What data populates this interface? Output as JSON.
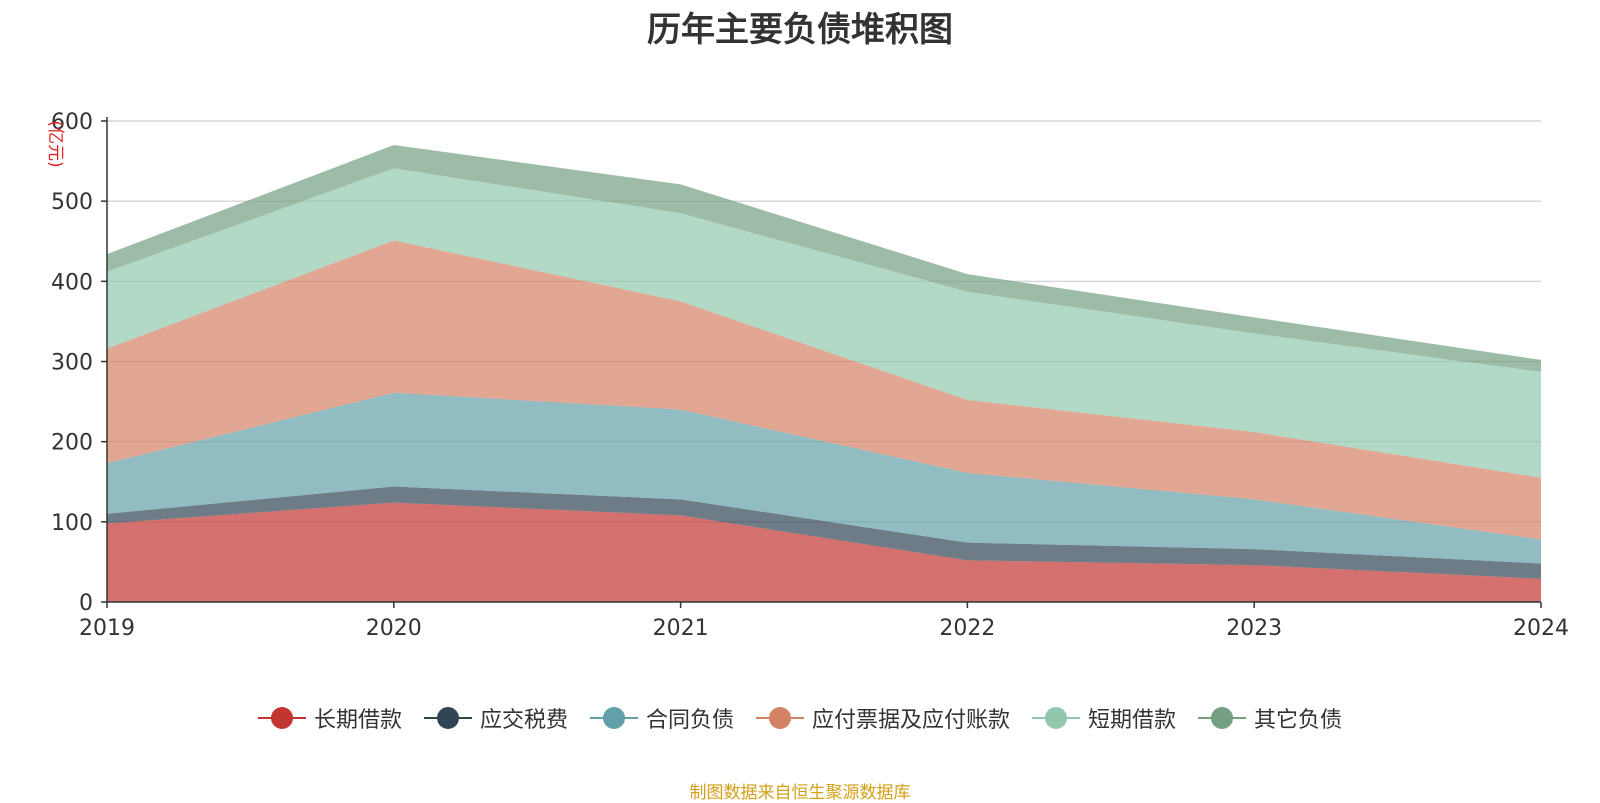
{
  "chart_data": {
    "type": "area",
    "stacked": true,
    "title": "历年主要负债堆积图",
    "unit_label": "(亿元)",
    "x": [
      "2019",
      "2020",
      "2021",
      "2022",
      "2023",
      "2024"
    ],
    "ylim": [
      0,
      600
    ],
    "yticks": [
      0,
      100,
      200,
      300,
      400,
      500,
      600
    ],
    "grid": true,
    "legend_position": "bottom",
    "series": [
      {
        "name": "长期借款",
        "color": "#c23531",
        "values": [
          98,
          124,
          108,
          52,
          46,
          29
        ]
      },
      {
        "name": "应交税费",
        "color": "#2f4554",
        "values": [
          12,
          20,
          20,
          22,
          20,
          19
        ]
      },
      {
        "name": "合同负债",
        "color": "#61a0a8",
        "values": [
          63,
          117,
          112,
          87,
          62,
          30
        ]
      },
      {
        "name": "应付票据及应付账款",
        "color": "#d48265",
        "values": [
          143,
          190,
          135,
          91,
          84,
          77
        ]
      },
      {
        "name": "短期借款",
        "color": "#91c7ae",
        "values": [
          96,
          90,
          110,
          135,
          123,
          132
        ]
      },
      {
        "name": "其它负债",
        "color": "#749f83",
        "values": [
          22,
          29,
          36,
          22,
          20,
          15
        ]
      }
    ]
  },
  "source_note": "制图数据来自恒生聚源数据库"
}
